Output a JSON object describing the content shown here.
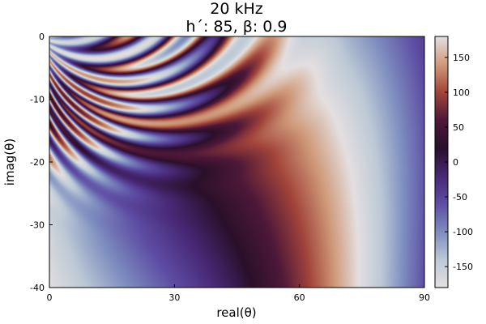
{
  "chart_data": {
    "type": "heatmap",
    "title": "20 kHz",
    "subtitle": "h´: 85, β: 0.9",
    "xlabel": "real(θ)",
    "ylabel": "imag(θ)",
    "xlim": [
      0,
      90
    ],
    "ylim": [
      -40,
      0
    ],
    "x_ticks": [
      0,
      30,
      60,
      90
    ],
    "y_ticks": [
      0,
      -10,
      -20,
      -30,
      -40
    ],
    "colorbar": {
      "range": [
        -180,
        180
      ],
      "ticks": [
        150,
        100,
        50,
        0,
        -50,
        -100,
        -150
      ],
      "colormap": "phase (cyclic)",
      "colors": [
        "#e4dfe0",
        "#cf9a79",
        "#a2443a",
        "#4e1839",
        "#2a102a",
        "#482876",
        "#5e4ea4",
        "#7d8cbf",
        "#bcc9d6",
        "#e4dfe0"
      ]
    },
    "grid": false
  }
}
